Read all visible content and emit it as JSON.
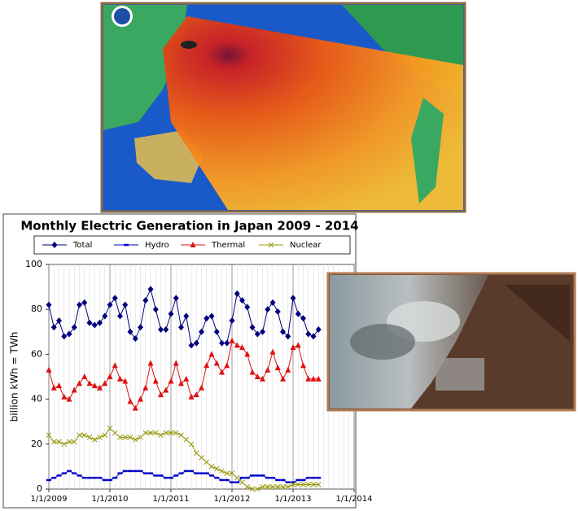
{
  "chart_data": {
    "type": "line",
    "title": "Monthly Electric Generation in Japan 2009 - 2014",
    "y_label": "billion kWh = TWh",
    "x": [
      "1/1/2009",
      "2/1/2009",
      "3/1/2009",
      "4/1/2009",
      "5/1/2009",
      "6/1/2009",
      "7/1/2009",
      "8/1/2009",
      "9/1/2009",
      "10/1/2009",
      "11/1/2009",
      "12/1/2009",
      "1/1/2010",
      "2/1/2010",
      "3/1/2010",
      "4/1/2010",
      "5/1/2010",
      "6/1/2010",
      "7/1/2010",
      "8/1/2010",
      "9/1/2010",
      "10/1/2010",
      "11/1/2010",
      "12/1/2010",
      "1/1/2011",
      "2/1/2011",
      "3/1/2011",
      "4/1/2011",
      "5/1/2011",
      "6/1/2011",
      "7/1/2011",
      "8/1/2011",
      "9/1/2011",
      "10/1/2011",
      "11/1/2011",
      "12/1/2011",
      "1/1/2012",
      "2/1/2012",
      "3/1/2012",
      "4/1/2012",
      "5/1/2012",
      "6/1/2012",
      "7/1/2012",
      "8/1/2012",
      "9/1/2012",
      "10/1/2012",
      "11/1/2012",
      "12/1/2012",
      "1/1/2013",
      "2/1/2013",
      "3/1/2013",
      "4/1/2013",
      "5/1/2013",
      "6/1/2013"
    ],
    "series": [
      {
        "name": "Total",
        "color": "#00007f",
        "marker": "diamond",
        "values": [
          82,
          72,
          75,
          68,
          69,
          72,
          82,
          83,
          74,
          73,
          74,
          77,
          82,
          85,
          77,
          82,
          70,
          67,
          72,
          84,
          89,
          80,
          71,
          71,
          78,
          85,
          72,
          77,
          64,
          65,
          70,
          76,
          77,
          70,
          65,
          65,
          75,
          87,
          84,
          81,
          72,
          69,
          70,
          80,
          83,
          79,
          70,
          68,
          85,
          78,
          76,
          69,
          68,
          71
        ]
      },
      {
        "name": "Hydro",
        "color": "#0000cc",
        "marker": "dash",
        "values": [
          4,
          5,
          6,
          7,
          8,
          7,
          6,
          5,
          5,
          5,
          5,
          4,
          4,
          5,
          7,
          8,
          8,
          8,
          8,
          7,
          7,
          6,
          6,
          5,
          5,
          6,
          7,
          8,
          8,
          7,
          7,
          7,
          6,
          5,
          4,
          4,
          3,
          3,
          5,
          5,
          6,
          6,
          6,
          5,
          5,
          4,
          4,
          3,
          3,
          4,
          4,
          5,
          5,
          5
        ]
      },
      {
        "name": "Thermal",
        "color": "#dd1111",
        "marker": "triangle",
        "values": [
          53,
          45,
          46,
          41,
          40,
          44,
          47,
          50,
          47,
          46,
          45,
          47,
          50,
          55,
          49,
          48,
          39,
          36,
          40,
          45,
          56,
          48,
          42,
          44,
          48,
          56,
          47,
          49,
          41,
          42,
          45,
          55,
          60,
          56,
          52,
          55,
          66,
          64,
          63,
          60,
          52,
          50,
          49,
          53,
          61,
          54,
          49,
          53,
          63,
          64,
          55,
          49,
          49,
          49
        ]
      },
      {
        "name": "Nuclear",
        "color": "#9a9a10",
        "marker": "cross",
        "values": [
          24,
          21,
          21,
          20,
          21,
          21,
          24,
          24,
          23,
          22,
          23,
          24,
          27,
          25,
          23,
          23,
          23,
          22,
          23,
          25,
          25,
          25,
          24,
          25,
          25,
          25,
          24,
          22,
          20,
          16,
          14,
          12,
          10,
          9,
          8,
          7,
          7,
          5,
          3,
          1,
          0,
          0,
          1,
          1,
          1,
          1,
          1,
          1,
          2,
          2,
          2,
          2,
          2,
          2
        ]
      }
    ],
    "xlim": [
      "1/1/2009",
      "1/1/2014"
    ],
    "xticks": [
      "1/1/2009",
      "1/1/2010",
      "1/1/2011",
      "1/1/2012",
      "1/1/2013",
      "1/1/2014"
    ],
    "ylim": [
      0,
      100
    ],
    "yticks": [
      0,
      20,
      40,
      60,
      80,
      100
    ],
    "grid": true,
    "legend": "top"
  }
}
